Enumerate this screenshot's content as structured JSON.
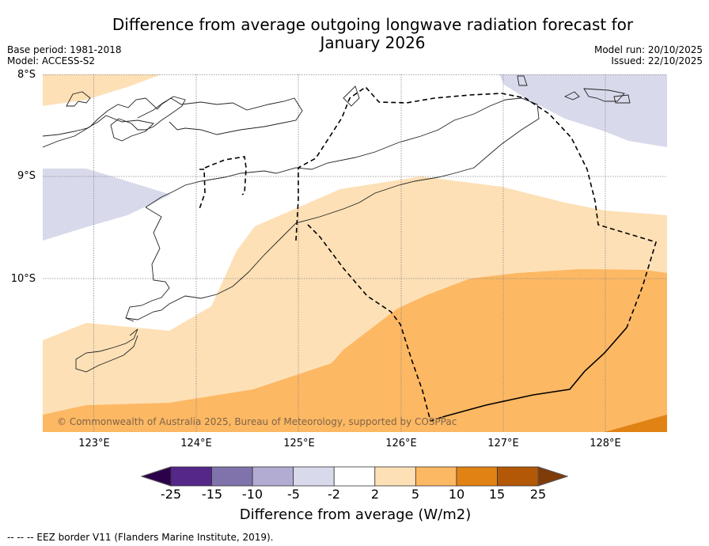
{
  "header": {
    "title_line1": "Difference from average outgoing longwave radiation forecast for",
    "title_line2": "January 2026",
    "base_period": "Base period: 1981-2018",
    "model": "Model: ACCESS-S2",
    "model_run": "Model run: 20/10/2025",
    "issued": "Issued: 22/10/2025"
  },
  "map": {
    "lat_labels": [
      "8°S",
      "9°S",
      "10°S"
    ],
    "lon_labels": [
      "123°E",
      "124°E",
      "125°E",
      "126°E",
      "127°E",
      "128°E"
    ],
    "lat_range": [
      -8,
      -11.5
    ],
    "lon_range": [
      122.5,
      128.6
    ],
    "credit": "© Commonwealth of Australia 2025, Bureau of Meteorology, supported by COSPPac"
  },
  "colorbar": {
    "ticks": [
      "-25",
      "-15",
      "-10",
      "-5",
      "-2",
      "2",
      "5",
      "10",
      "15",
      "25"
    ],
    "colors": {
      "under": "#2d004b",
      "bins": [
        "#542788",
        "#8073ac",
        "#b2abd2",
        "#d8daeb",
        "#ffffff",
        "#fee0b6",
        "#fdb863",
        "#e08214",
        "#b35806"
      ],
      "over": "#7f3b08"
    },
    "label": "Difference from average (W/m2)"
  },
  "legend": {
    "eez_note": "-- -- -- EEZ border V11 (Flanders Marine Institute, 2019)."
  },
  "chart_data": {
    "type": "heatmap",
    "title": "Difference from average outgoing longwave radiation forecast for January 2026",
    "variable": "Outgoing longwave radiation anomaly",
    "units": "W/m2",
    "levels": [
      -25,
      -15,
      -10,
      -5,
      -2,
      2,
      5,
      10,
      15,
      25
    ],
    "region": {
      "lon": [
        122.5,
        128.6
      ],
      "lat": [
        -11.5,
        -8
      ]
    },
    "regions_observed": [
      {
        "area": "NW corner near 8°S, 122.5-123.6°E",
        "category": "2 to 5"
      },
      {
        "area": "West near 9-9.6°S, 122.5-123.7°E",
        "category": "-5 to -2"
      },
      {
        "area": "NE corner near 8-8.7°S, 127-128.6°E",
        "category": "-5 to -2"
      },
      {
        "area": "Central band 9-10°S south of Timor",
        "category": "2 to 5"
      },
      {
        "area": "Southern area south of ~10°S",
        "category": "5 to 10"
      },
      {
        "area": "SE corner near 11.4°S, 128-128.6°E",
        "category": "10 to 15"
      },
      {
        "area": "Timor and island coastlines / north",
        "category": "-2 to 2"
      }
    ]
  }
}
